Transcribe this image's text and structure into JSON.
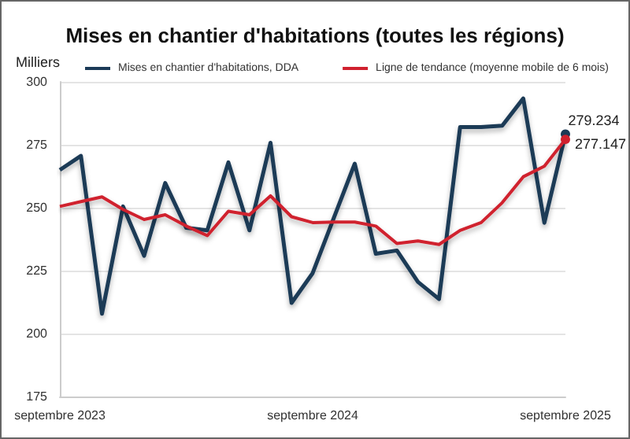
{
  "chart_data": {
    "type": "line",
    "title": "Mises en chantier d'habitations (toutes les régions)",
    "ylabel": "Milliers",
    "categories": [
      "septembre 2023",
      null,
      null,
      null,
      null,
      null,
      null,
      null,
      null,
      null,
      null,
      null,
      "septembre 2024",
      null,
      null,
      null,
      null,
      null,
      null,
      null,
      null,
      null,
      null,
      null,
      "septembre 2025"
    ],
    "series": [
      {
        "name": "Mises en chantier d'habitations, DDA",
        "color": "#1b3a57",
        "values": [
          265,
          270.6,
          207.9,
          250.5,
          230.9,
          259.8,
          242,
          241,
          268,
          241,
          275.8,
          212.2,
          224,
          245.8,
          267.5,
          231.7,
          233,
          220.5,
          213.7,
          282,
          282,
          282.6,
          293.4,
          244,
          279.234
        ],
        "value_labels": [
          null,
          null,
          null,
          null,
          null,
          null,
          null,
          null,
          null,
          null,
          null,
          null,
          null,
          null,
          null,
          null,
          null,
          null,
          null,
          null,
          null,
          null,
          null,
          null,
          "279.234"
        ]
      },
      {
        "name": "Ligne de tendance (moyenne mobile de 6 mois)",
        "color": "#d0202e",
        "values": [
          250.5,
          252.4,
          254.3,
          249.3,
          245.3,
          247.2,
          242.7,
          238.9,
          248.6,
          247.2,
          254.7,
          246.4,
          244.1,
          244.3,
          244.3,
          242.7,
          235.8,
          236.8,
          235.4,
          241,
          244.1,
          252,
          262.3,
          266.5,
          277.147
        ],
        "value_labels": [
          null,
          null,
          null,
          null,
          null,
          null,
          null,
          null,
          null,
          null,
          null,
          null,
          null,
          null,
          null,
          null,
          null,
          null,
          null,
          null,
          null,
          null,
          null,
          null,
          "277.147"
        ]
      }
    ],
    "ylim": [
      175,
      300
    ],
    "yticks": [
      175,
      200,
      225,
      250,
      275,
      300
    ],
    "grid": "y",
    "legend": "top",
    "marker": "none",
    "line_style": "solid"
  }
}
